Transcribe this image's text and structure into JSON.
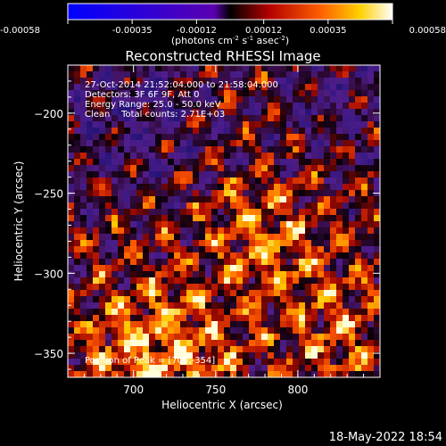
{
  "chart_data": {
    "type": "heatmap",
    "title": "Reconstructed RHESSI Image",
    "xlabel": "Heliocentric X (arcsec)",
    "ylabel": "Heliocentric Y (arcsec)",
    "xlim": [
      660,
      850
    ],
    "ylim": [
      -365,
      -170
    ],
    "x_ticks": [
      700,
      750,
      800
    ],
    "y_ticks": [
      -200,
      -250,
      -300,
      -350
    ],
    "colorbar": {
      "range": [
        -0.00058,
        0.00058
      ],
      "tick_labels": [
        "-0.00058",
        "-0.00035",
        "-0.00012",
        "0.00012",
        "0.00035",
        "0.00058"
      ],
      "label_main": "(photons cm",
      "label_exp1": "-2",
      "label_mid1": " s",
      "label_exp2": "-1",
      "label_mid2": " asec",
      "label_exp3": "-2",
      "label_end": ")"
    },
    "annotations": [
      "27-Oct-2014 21:52:04.000 to 21:58:04.000",
      "Detectors: 3F 6F 9F, Att 0",
      "Energy Range: 25.0 - 50.0 keV",
      "Clean    Total counts: 2.71E+03"
    ],
    "peak_label": "Position of Peak = [705,-354]",
    "peak": [
      705,
      -354
    ]
  },
  "footer": {
    "timestamp": "18-May-2022 18:54"
  }
}
